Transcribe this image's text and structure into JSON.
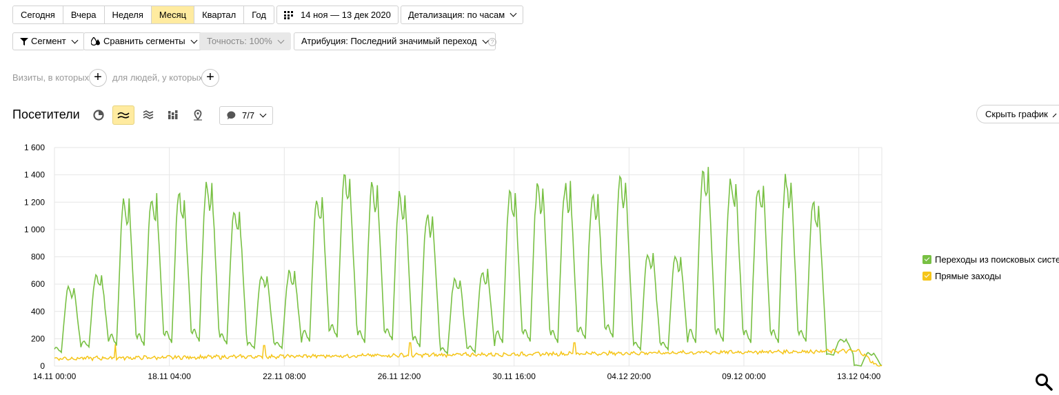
{
  "period_tabs": [
    "Сегодня",
    "Вчера",
    "Неделя",
    "Месяц",
    "Квартал",
    "Год"
  ],
  "active_tab": "Месяц",
  "date_range": "14 ноя — 13 дек 2020",
  "detail": "Детализация: по часам",
  "toolbar2": {
    "segment": "Сегмент",
    "compare": "Сравнить сегменты",
    "accuracy": "Точность: 100%",
    "attribution": "Атрибуция: Последний значимый переход",
    "help": "?"
  },
  "filters": {
    "visits_label": "Визиты, в которых",
    "people_label": "для людей, у которых",
    "plus": "+"
  },
  "report": {
    "title": "Посетители",
    "notes_count": "7/7",
    "hide_chart": "Скрыть график"
  },
  "legend": [
    {
      "label": "Переходы из поисковых систем",
      "color": "#78c043"
    },
    {
      "label": "Прямые заходы",
      "color": "#f5c518"
    }
  ],
  "chart_data": {
    "type": "line",
    "xlabel": "",
    "ylabel": "",
    "ylim": [
      0,
      1600
    ],
    "yticks": [
      0,
      200,
      400,
      600,
      800,
      1000,
      1200,
      1400,
      1600
    ],
    "ytick_labels": [
      "0",
      "200",
      "400",
      "600",
      "800",
      "1 000",
      "1 200",
      "1 400",
      "1 600"
    ],
    "xtick_labels": [
      "14.11 00:00",
      "18.11 04:00",
      "22.11 08:00",
      "26.11 12:00",
      "30.11 16:00",
      "04.12 20:00",
      "09.12 00:00",
      "13.12 04:00"
    ],
    "x_range_days": [
      0,
      30
    ],
    "xtick_days": [
      0,
      4.1667,
      8.3333,
      12.5,
      16.6667,
      20.8333,
      25,
      29.1667
    ],
    "daily_peaks": [
      {
        "day": 0,
        "peak": 600,
        "low": 100
      },
      {
        "day": 1,
        "peak": 690,
        "low": 140
      },
      {
        "day": 2,
        "peak": 1240,
        "low": 150
      },
      {
        "day": 3,
        "peak": 1270,
        "low": 150
      },
      {
        "day": 4,
        "peak": 1290,
        "low": 170
      },
      {
        "day": 5,
        "peak": 1390,
        "low": 180
      },
      {
        "day": 6,
        "peak": 1170,
        "low": 160
      },
      {
        "day": 7,
        "peak": 680,
        "low": 130
      },
      {
        "day": 8,
        "peak": 710,
        "low": 130
      },
      {
        "day": 9,
        "peak": 1270,
        "low": 180
      },
      {
        "day": 10,
        "peak": 1420,
        "low": 210
      },
      {
        "day": 11,
        "peak": 1360,
        "low": 170
      },
      {
        "day": 12,
        "peak": 1300,
        "low": 190
      },
      {
        "day": 13,
        "peak": 1160,
        "low": 140
      },
      {
        "day": 14,
        "peak": 660,
        "low": 90
      },
      {
        "day": 15,
        "peak": 720,
        "low": 100
      },
      {
        "day": 16,
        "peak": 1310,
        "low": 170
      },
      {
        "day": 17,
        "peak": 1350,
        "low": 180
      },
      {
        "day": 18,
        "peak": 1360,
        "low": 170
      },
      {
        "day": 19,
        "peak": 1300,
        "low": 200
      },
      {
        "day": 20,
        "peak": 1400,
        "low": 210
      },
      {
        "day": 21,
        "peak": 840,
        "low": 120
      },
      {
        "day": 22,
        "peak": 840,
        "low": 120
      },
      {
        "day": 23,
        "peak": 1470,
        "low": 170
      },
      {
        "day": 24,
        "peak": 1400,
        "low": 180
      },
      {
        "day": 25,
        "peak": 1360,
        "low": 170
      },
      {
        "day": 26,
        "peak": 1420,
        "low": 170
      },
      {
        "day": 27,
        "peak": 1220,
        "low": 180
      },
      {
        "day": 28,
        "peak": 200,
        "low": 80
      },
      {
        "day": 29,
        "peak": 100,
        "low": 0
      }
    ],
    "series": [
      {
        "name": "Переходы из поисковых систем",
        "color": "#78c043"
      },
      {
        "name": "Прямые заходы",
        "color": "#f5c518",
        "baseline_start": 55,
        "baseline_end": 110,
        "spikes": [
          {
            "day": 2.2,
            "value": 160
          },
          {
            "day": 7.6,
            "value": 150
          },
          {
            "day": 12.9,
            "value": 170
          },
          {
            "day": 18.85,
            "value": 170
          }
        ]
      }
    ]
  }
}
